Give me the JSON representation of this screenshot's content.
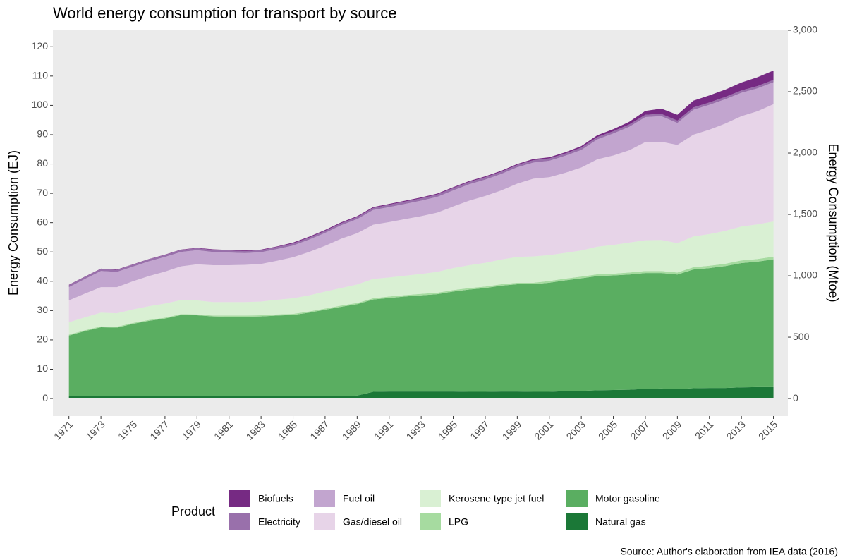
{
  "chart_data": {
    "type": "stacked_area",
    "title": "World energy consumption for transport by source",
    "y_label": "Energy Consumption (EJ)",
    "y2_label": "Energy Consumption (Mtoe)",
    "legend_title": "Product",
    "source": "Source: Author's elaboration from IEA data (2016)",
    "grid": true,
    "x": [
      1971,
      1972,
      1973,
      1974,
      1975,
      1976,
      1977,
      1978,
      1979,
      1980,
      1981,
      1982,
      1983,
      1984,
      1985,
      1986,
      1987,
      1988,
      1989,
      1990,
      1991,
      1992,
      1993,
      1994,
      1995,
      1996,
      1997,
      1998,
      1999,
      2000,
      2001,
      2002,
      2003,
      2004,
      2005,
      2006,
      2007,
      2008,
      2009,
      2010,
      2011,
      2012,
      2013,
      2014,
      2015
    ],
    "xlim": [
      1970,
      2015.9
    ],
    "xticks": [
      1971,
      1973,
      1975,
      1977,
      1979,
      1981,
      1983,
      1985,
      1987,
      1989,
      1991,
      1993,
      1995,
      1997,
      1999,
      2001,
      2003,
      2005,
      2007,
      2009,
      2011,
      2013,
      2015
    ],
    "ylim": [
      -6,
      125.6
    ],
    "yticks": [
      0,
      10,
      20,
      30,
      40,
      50,
      60,
      70,
      80,
      90,
      100,
      110,
      120
    ],
    "y2lim": [
      -143.3,
      3000
    ],
    "y2ticks": [
      0,
      500,
      {
        "value": 1000,
        "label": "1,000"
      },
      {
        "value": 1500,
        "label": "1,500"
      },
      {
        "value": 2000,
        "label": "2,000"
      },
      {
        "value": 2500,
        "label": "2,500"
      },
      {
        "value": 3000,
        "label": "3,000"
      }
    ],
    "series": [
      {
        "name": "Biofuels",
        "color": "#762a83",
        "values": [
          0.1,
          0.1,
          0.1,
          0.1,
          0.1,
          0.1,
          0.1,
          0.1,
          0.1,
          0.2,
          0.2,
          0.2,
          0.2,
          0.2,
          0.3,
          0.3,
          0.3,
          0.3,
          0.3,
          0.3,
          0.3,
          0.3,
          0.3,
          0.3,
          0.3,
          0.3,
          0.3,
          0.3,
          0.3,
          0.4,
          0.4,
          0.4,
          0.5,
          0.6,
          0.7,
          0.9,
          1.3,
          1.8,
          2.0,
          2.3,
          2.4,
          2.5,
          2.7,
          3.0,
          3.2
        ]
      },
      {
        "name": "Electricity",
        "color": "#9970ab",
        "values": [
          0.7,
          0.7,
          0.7,
          0.7,
          0.7,
          0.7,
          0.7,
          0.7,
          0.7,
          0.7,
          0.7,
          0.7,
          0.7,
          0.7,
          0.7,
          0.7,
          0.7,
          0.7,
          0.7,
          0.7,
          0.8,
          0.8,
          0.8,
          0.8,
          0.8,
          0.8,
          0.8,
          0.8,
          0.8,
          0.8,
          0.8,
          0.8,
          0.8,
          0.8,
          0.8,
          0.8,
          0.8,
          0.8,
          0.8,
          0.8,
          0.8,
          0.8,
          0.8,
          0.8,
          0.8
        ]
      },
      {
        "name": "Fuel oil",
        "color": "#c2a5cf",
        "values": [
          4.5,
          5.0,
          5.5,
          5.2,
          5.0,
          5.0,
          5.0,
          4.9,
          4.8,
          4.5,
          4.3,
          4.0,
          4.0,
          4.0,
          4.0,
          4.2,
          4.4,
          4.6,
          4.8,
          5.0,
          5.1,
          5.2,
          5.3,
          5.4,
          5.5,
          5.6,
          5.6,
          5.6,
          5.6,
          5.5,
          5.6,
          5.8,
          6.0,
          6.8,
          7.5,
          8.0,
          8.5,
          8.7,
          7.5,
          8.5,
          8.5,
          8.3,
          8.0,
          7.8,
          7.5
        ]
      },
      {
        "name": "Gas/diesel oil",
        "color": "#e7d4e8",
        "values": [
          7.5,
          8.1,
          8.7,
          8.9,
          9.6,
          10.3,
          10.9,
          11.5,
          12.3,
          12.6,
          12.6,
          12.7,
          12.8,
          13.3,
          14.0,
          14.8,
          15.6,
          16.8,
          17.5,
          18.5,
          18.9,
          19.3,
          19.7,
          20.2,
          21.0,
          22.0,
          22.8,
          23.6,
          25.0,
          26.5,
          26.6,
          27.3,
          28.3,
          29.8,
          30.5,
          31.5,
          33.5,
          33.5,
          33.5,
          34.7,
          35.6,
          36.6,
          37.6,
          38.6,
          40.0
        ]
      },
      {
        "name": "Kerosene type jet fuel",
        "color": "#d9f0d3",
        "values": [
          4.2,
          4.4,
          4.7,
          4.6,
          4.6,
          4.7,
          4.8,
          4.8,
          4.8,
          4.6,
          4.6,
          4.6,
          4.7,
          5.0,
          5.3,
          5.5,
          5.8,
          6.0,
          6.3,
          6.6,
          6.5,
          6.6,
          6.8,
          7.1,
          7.5,
          7.8,
          8.1,
          8.4,
          8.8,
          9.0,
          8.8,
          8.8,
          8.9,
          9.4,
          9.8,
          10.2,
          10.5,
          10.6,
          10.0,
          10.5,
          10.8,
          11.2,
          11.6,
          11.8,
          12.0
        ]
      },
      {
        "name": "LPG",
        "color": "#a6dba0",
        "values": [
          0.3,
          0.3,
          0.3,
          0.3,
          0.3,
          0.3,
          0.3,
          0.3,
          0.3,
          0.3,
          0.4,
          0.4,
          0.4,
          0.4,
          0.4,
          0.4,
          0.4,
          0.4,
          0.4,
          0.4,
          0.5,
          0.5,
          0.5,
          0.5,
          0.5,
          0.5,
          0.5,
          0.5,
          0.5,
          0.5,
          0.6,
          0.6,
          0.6,
          0.6,
          0.6,
          0.7,
          0.7,
          0.7,
          0.7,
          0.8,
          0.8,
          0.8,
          0.9,
          0.9,
          0.9
        ]
      },
      {
        "name": "Motor gasoline",
        "color": "#5aae61",
        "values": [
          20.7,
          22.2,
          23.5,
          23.4,
          24.7,
          25.7,
          26.5,
          27.7,
          27.6,
          27.2,
          27.1,
          27.1,
          27.2,
          27.5,
          27.7,
          28.5,
          29.5,
          30.5,
          31.2,
          31.5,
          31.9,
          32.4,
          32.8,
          33.2,
          34.1,
          34.9,
          35.4,
          36.1,
          36.6,
          36.7,
          37.2,
          37.8,
          38.4,
          39.0,
          39.1,
          39.3,
          39.5,
          39.4,
          39.1,
          40.5,
          40.9,
          41.6,
          42.4,
          42.8,
          43.6
        ]
      },
      {
        "name": "Natural gas",
        "color": "#1b7837",
        "values": [
          0.8,
          0.8,
          0.8,
          0.8,
          0.8,
          0.8,
          0.8,
          0.8,
          0.8,
          0.8,
          0.8,
          0.8,
          0.8,
          0.8,
          0.8,
          0.8,
          0.8,
          0.8,
          1.0,
          2.3,
          2.4,
          2.4,
          2.4,
          2.4,
          2.4,
          2.3,
          2.3,
          2.4,
          2.4,
          2.3,
          2.3,
          2.5,
          2.6,
          2.8,
          2.9,
          3.0,
          3.3,
          3.4,
          3.2,
          3.5,
          3.6,
          3.6,
          3.8,
          3.9,
          3.9
        ]
      }
    ]
  }
}
